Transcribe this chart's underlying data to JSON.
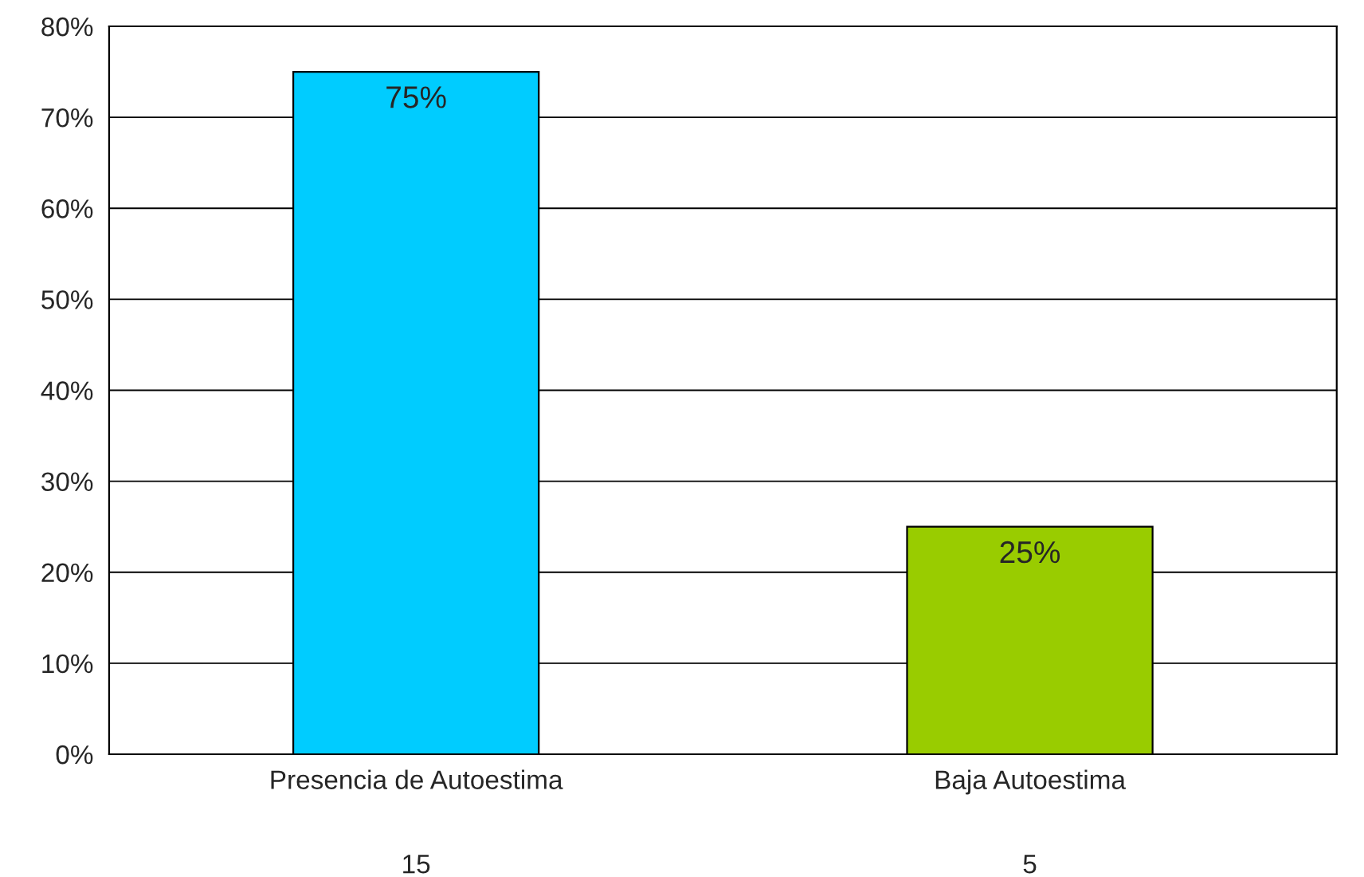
{
  "chart_data": {
    "type": "bar",
    "categories": [
      "Presencia de Autoestima",
      "Baja Autoestima"
    ],
    "values": [
      75,
      25
    ],
    "colors": [
      "#00ccff",
      "#99cc00"
    ],
    "value_labels": [
      "75%",
      "25%"
    ],
    "annotations": [
      "15",
      "5"
    ],
    "ylim": [
      0,
      80
    ],
    "yticks": [
      {
        "value": 0,
        "label": "0%"
      },
      {
        "value": 10,
        "label": "10%"
      },
      {
        "value": 20,
        "label": "20%"
      },
      {
        "value": 30,
        "label": "30%"
      },
      {
        "value": 40,
        "label": "40%"
      },
      {
        "value": 50,
        "label": "50%"
      },
      {
        "value": 60,
        "label": "60%"
      },
      {
        "value": 70,
        "label": "70%"
      },
      {
        "value": 80,
        "label": "80%"
      }
    ],
    "grid": "y"
  }
}
